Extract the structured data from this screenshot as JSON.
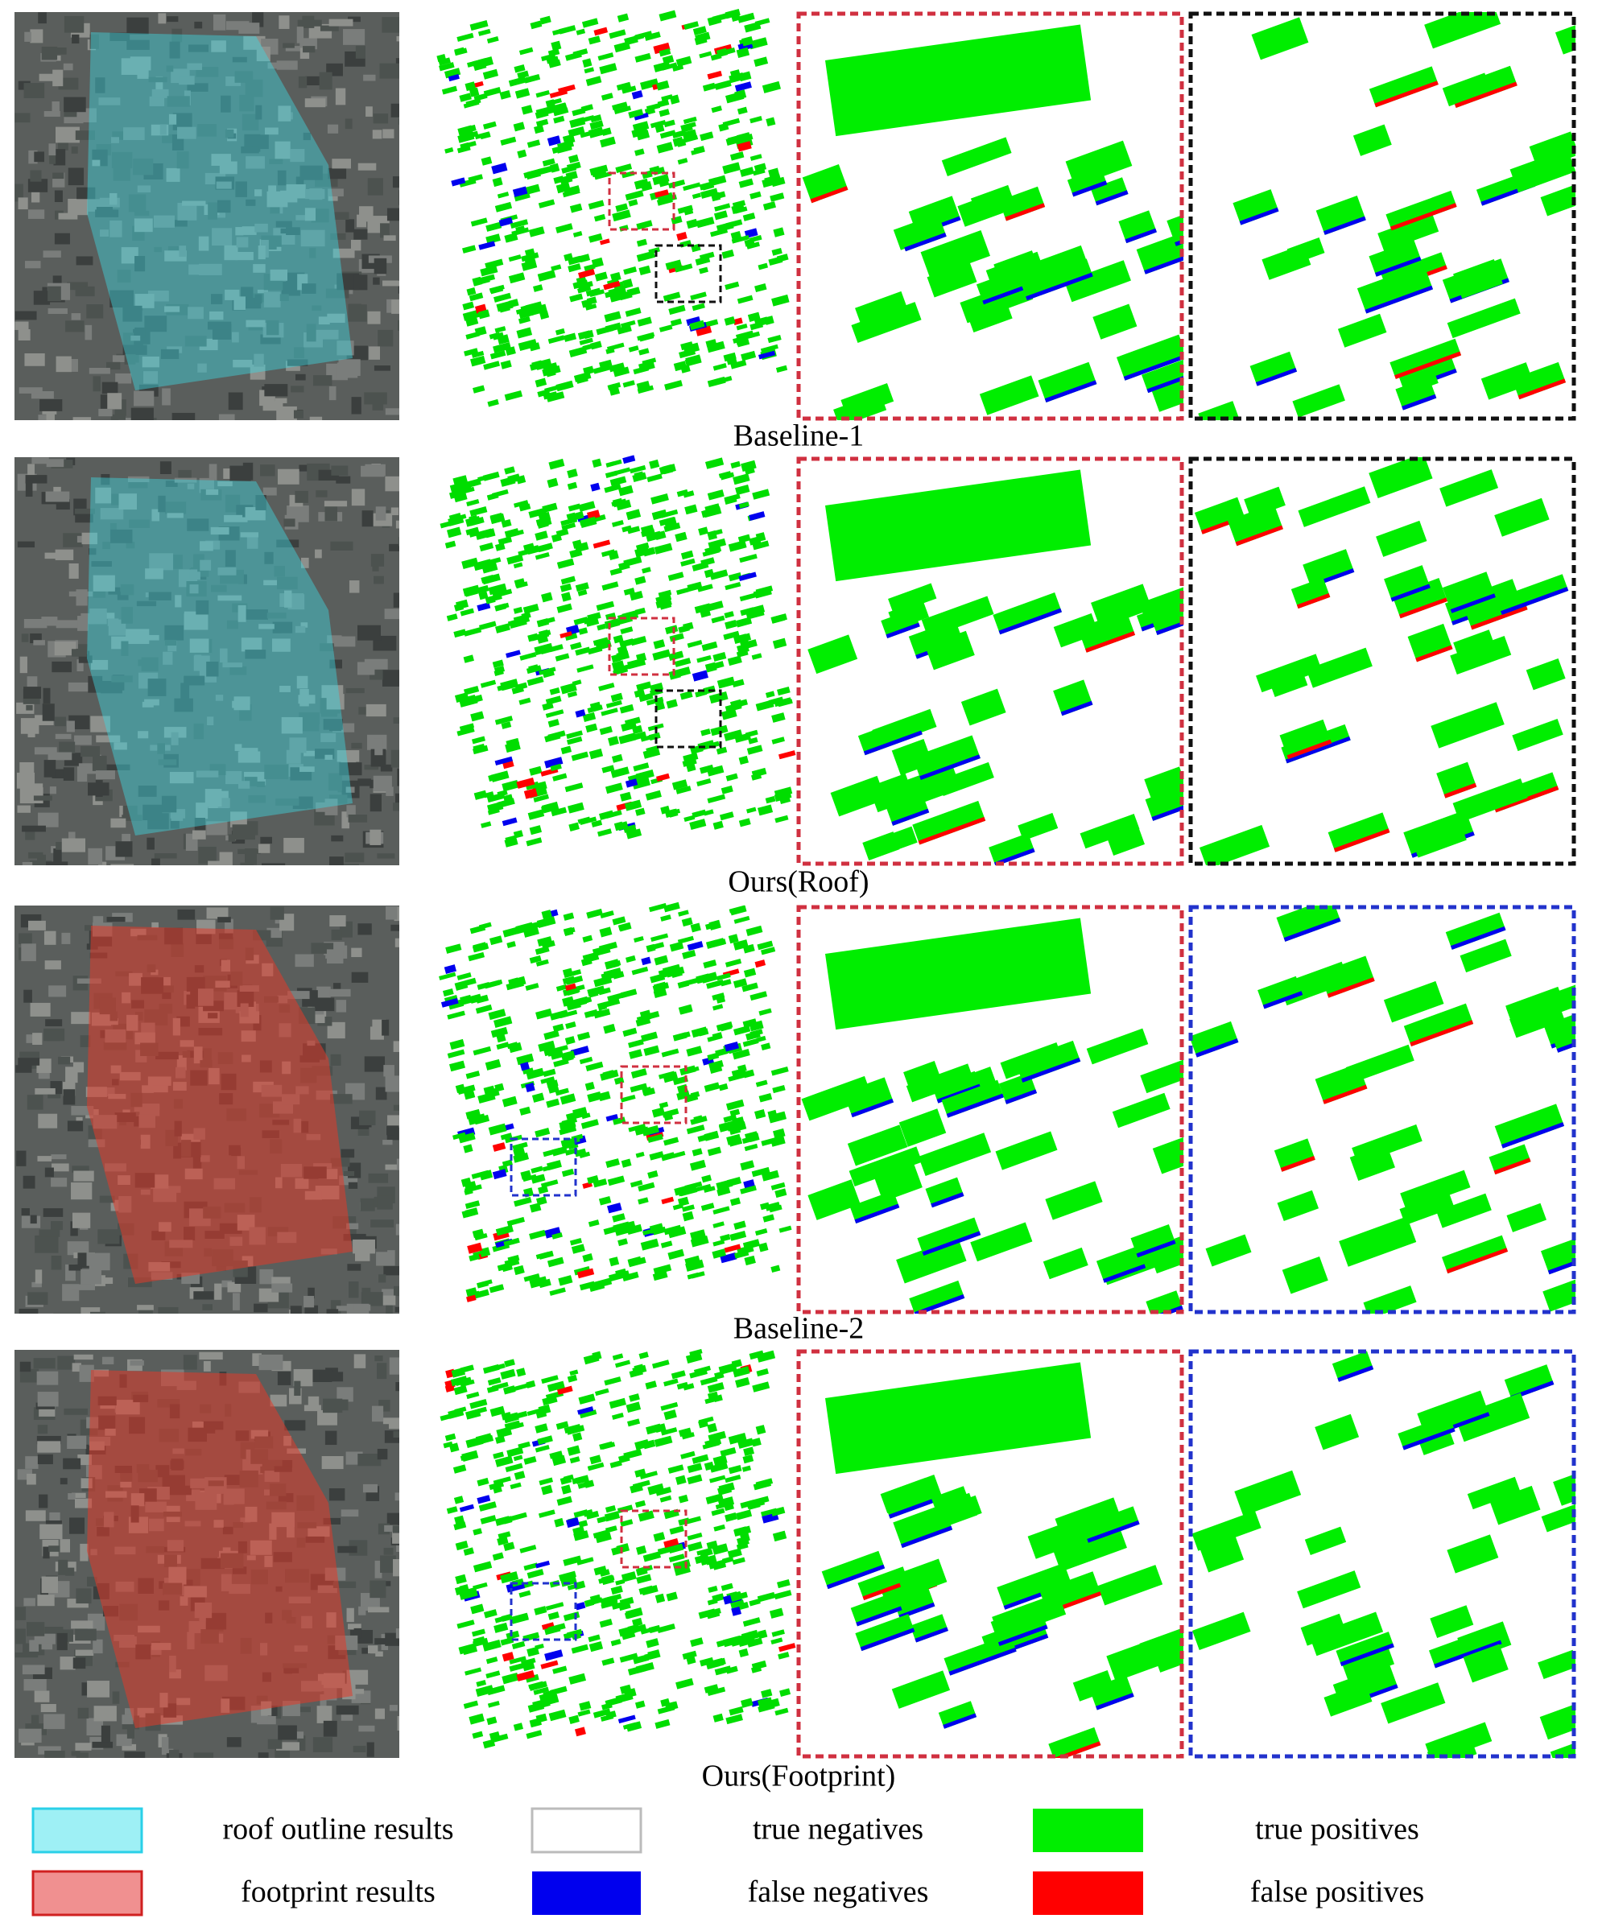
{
  "rows": [
    {
      "caption": "Baseline-1"
    },
    {
      "caption": "Ours(Roof)"
    },
    {
      "caption": "Baseline-2"
    },
    {
      "caption": "Ours(Footprint)"
    }
  ],
  "legend": [
    {
      "label": "roof outline results"
    },
    {
      "label": "true negatives"
    },
    {
      "label": "true positives"
    },
    {
      "label": "footprint results"
    },
    {
      "label": "false negatives"
    },
    {
      "label": "false positives"
    }
  ]
}
